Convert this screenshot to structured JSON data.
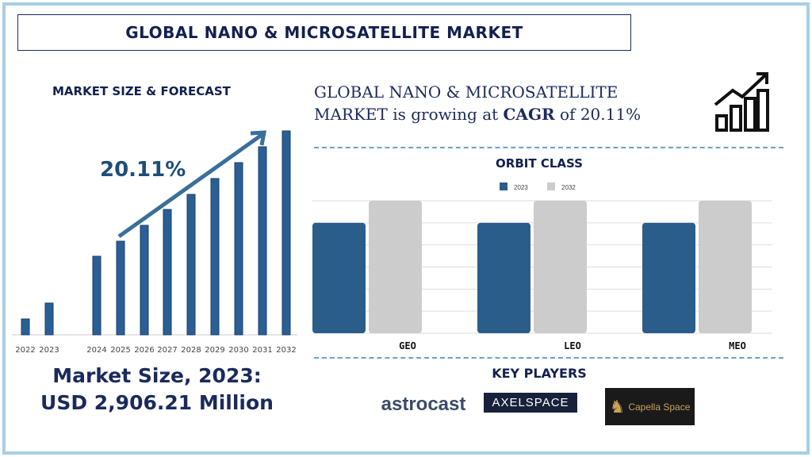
{
  "header": {
    "title": "GLOBAL NANO & MICROSATELLITE MARKET"
  },
  "left": {
    "heading": "MARKET SIZE & FORECAST",
    "cagr_label": "20.11%",
    "size_line1": "Market Size, 2023:",
    "size_line2": "USD 2,906.21 Million"
  },
  "right": {
    "cagr_text_pre": "GLOBAL NANO & MICROSATELLITE MARKET is growing at ",
    "cagr_bold": "CAGR",
    "cagr_text_post": " of  20.11%",
    "key_players_title": "KEY PLAYERS",
    "icon": "growth-chart-arrow-icon"
  },
  "logos": {
    "astrocast": "astrocast",
    "axelspace": "AXELSPACE",
    "capella": "Capella Space"
  },
  "chart_data": [
    {
      "type": "bar",
      "categories": [
        "2022",
        "2023",
        "2024",
        "2025",
        "2026",
        "2027",
        "2028",
        "2029",
        "2030",
        "2031",
        "2032"
      ],
      "values": [
        20,
        40,
        99,
        118,
        138,
        158,
        177,
        197,
        217,
        237,
        257
      ],
      "annotation": "20.11%",
      "grid": false,
      "color": "#2a5f96"
    },
    {
      "type": "bar",
      "title": "ORBIT CLASS",
      "categories": [
        "GEO",
        "LEO",
        "MEO"
      ],
      "series": [
        {
          "name": "2023",
          "values": [
            5,
            5,
            5
          ],
          "color": "#2b5d8b"
        },
        {
          "name": "2032",
          "values": [
            6,
            6,
            6
          ],
          "color": "#cccccc"
        }
      ],
      "ylim": [
        0,
        6
      ],
      "grid": true,
      "legend": "top-center"
    }
  ]
}
